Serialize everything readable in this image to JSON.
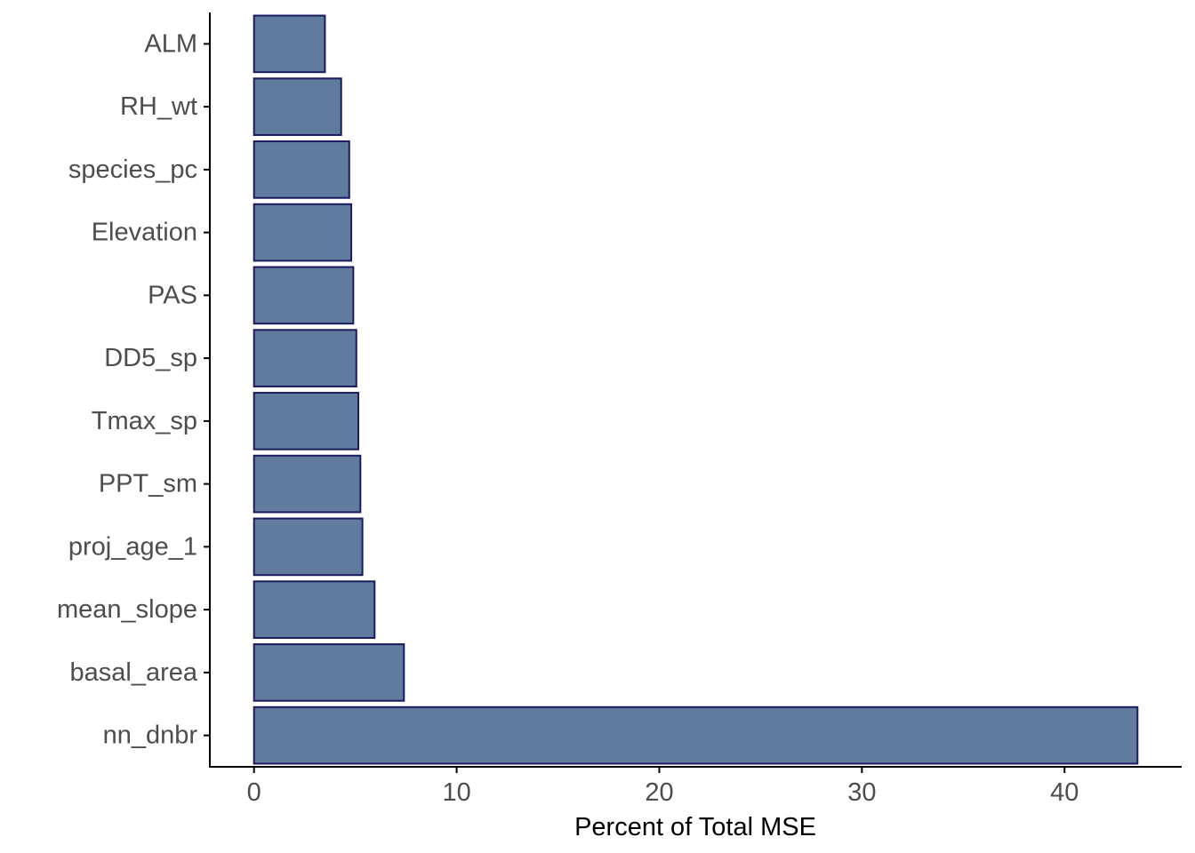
{
  "chart_data": {
    "type": "bar",
    "orientation": "horizontal",
    "categories": [
      "ALM",
      "RH_wt",
      "species_pc",
      "Elevation",
      "PAS",
      "DD5_sp",
      "Tmax_sp",
      "PPT_sm",
      "proj_age_1",
      "mean_slope",
      "basal_area",
      "nn_dnbr"
    ],
    "values": [
      3.5,
      4.3,
      4.7,
      4.8,
      4.9,
      5.05,
      5.15,
      5.25,
      5.35,
      5.95,
      7.4,
      43.6
    ],
    "title": "",
    "xlabel": "Percent of Total MSE",
    "ylabel": "",
    "xlim": [
      -2.18,
      45.78
    ],
    "x_ticks": [
      0,
      10,
      20,
      30,
      40
    ],
    "x_tick_labels": [
      "0",
      "10",
      "20",
      "30",
      "40"
    ],
    "grid": false,
    "legend": "none",
    "colors": {
      "bar_fill": "#607b9e",
      "bar_stroke": "#1a1a5e",
      "axis": "#000000",
      "tick_text": "#4d4d4d"
    }
  }
}
